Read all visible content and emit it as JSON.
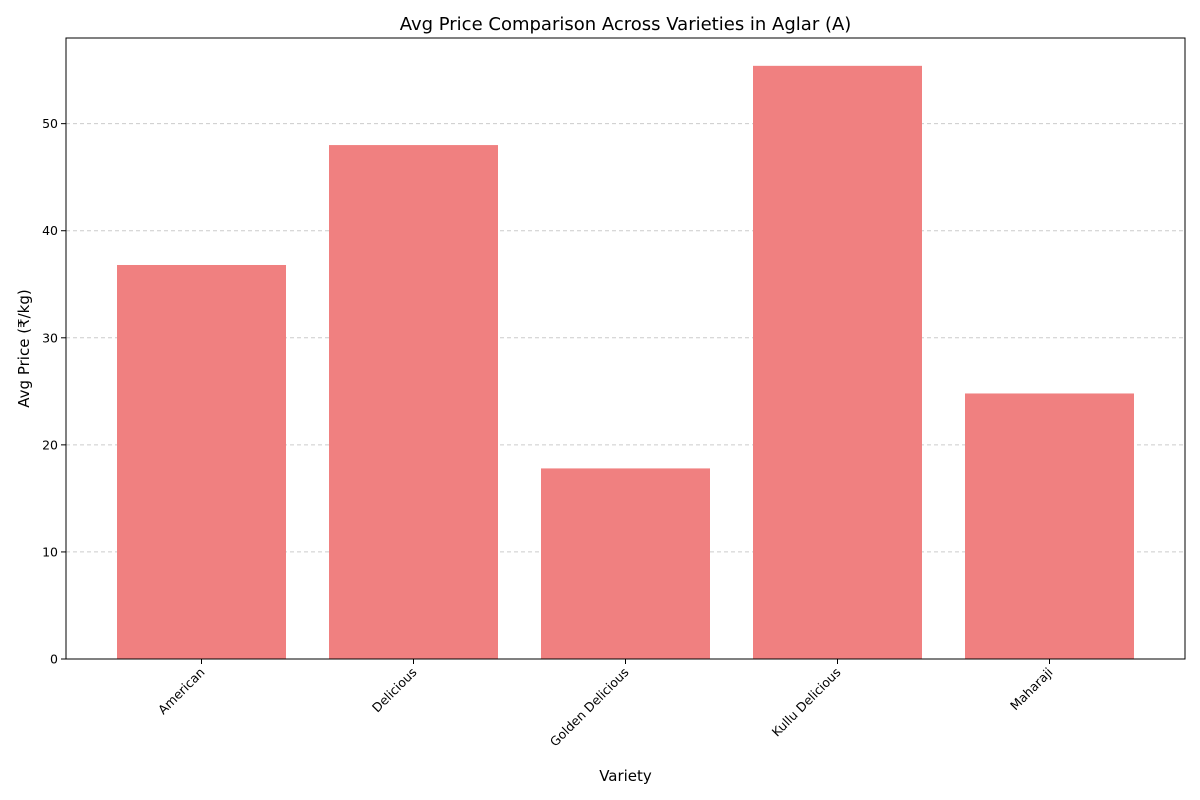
{
  "chart_data": {
    "type": "bar",
    "title": "Avg Price Comparison Across Varieties in Aglar (A)",
    "xlabel": "Variety",
    "ylabel": "Avg Price (₹/kg)",
    "categories": [
      "American",
      "Delicious",
      "Golden Delicious",
      "Kullu Delicious",
      "Maharaji"
    ],
    "values": [
      36.8,
      48.0,
      17.8,
      55.4,
      24.8
    ],
    "ylim": [
      0,
      58
    ],
    "yticks": [
      0,
      10,
      20,
      30,
      40,
      50
    ],
    "bar_color": "#f08080",
    "grid": "y-dashed",
    "legend": "none"
  }
}
